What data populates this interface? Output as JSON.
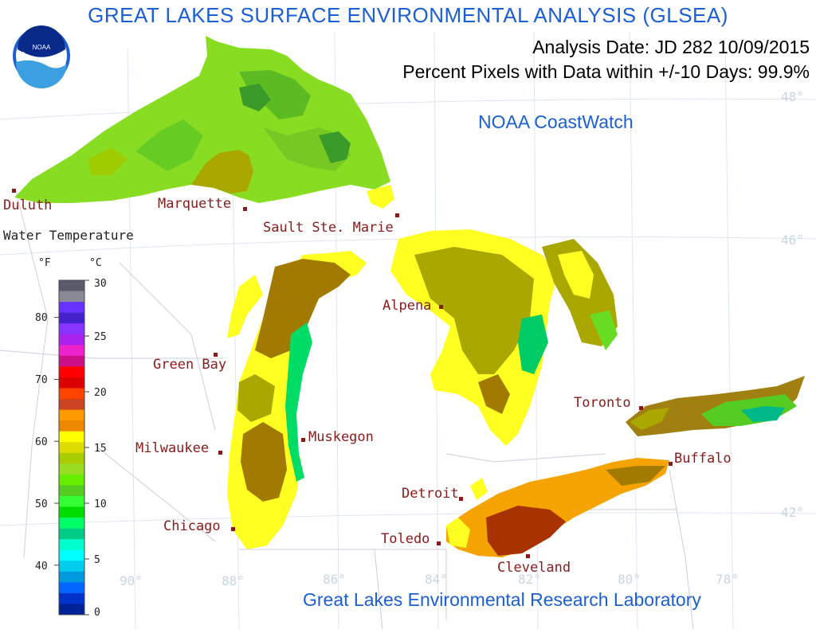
{
  "title": "GREAT LAKES SURFACE ENVIRONMENTAL ANALYSIS (GLSEA)",
  "analysis_date": "Analysis Date:  JD 282 10/09/2015",
  "coverage": "Percent Pixels with Data within +/-10 Days:  99.9%",
  "coastwatch": "NOAA CoastWatch",
  "lab": "Great Lakes Environmental Research Laboratory",
  "logo_text": "NOAA",
  "legend": {
    "title": "Water Temperature",
    "unit_f": "°F",
    "unit_c": "°C",
    "f_ticks": [
      "80",
      "70",
      "60",
      "50",
      "40"
    ],
    "c_ticks": [
      "30",
      "25",
      "20",
      "15",
      "10",
      "5",
      "0"
    ],
    "colors": [
      "#5a5a6a",
      "#8a8a96",
      "#6633ff",
      "#4422cc",
      "#8833ff",
      "#aa22ee",
      "#ee22cc",
      "#cc1188",
      "#ff0000",
      "#dd0000",
      "#ff4400",
      "#cc4422",
      "#ff9900",
      "#ee8800",
      "#ffff00",
      "#dddd00",
      "#aacc00",
      "#99dd22",
      "#66ee00",
      "#55cc22",
      "#33ff33",
      "#00dd00",
      "#00ff66",
      "#00cc88",
      "#00ffcc",
      "#00ffff",
      "#00ccee",
      "#0099dd",
      "#0066ff",
      "#0033cc",
      "#002299"
    ]
  },
  "cities": [
    {
      "name": "Duluth"
    },
    {
      "name": "Marquette"
    },
    {
      "name": "Sault Ste. Marie"
    },
    {
      "name": "Green Bay"
    },
    {
      "name": "Alpena"
    },
    {
      "name": "Milwaukee"
    },
    {
      "name": "Muskegon"
    },
    {
      "name": "Toronto"
    },
    {
      "name": "Buffalo"
    },
    {
      "name": "Detroit"
    },
    {
      "name": "Chicago"
    },
    {
      "name": "Toledo"
    },
    {
      "name": "Cleveland"
    }
  ],
  "graticule": {
    "lat": [
      "48°",
      "46°",
      "42°"
    ],
    "lon": [
      "90°",
      "88°",
      "86°",
      "84°",
      "82°",
      "80°",
      "78°"
    ]
  },
  "colors": {
    "title_blue": "#1a5fd6",
    "city_red": "#8b1a1a",
    "lake_superior": "#88dd22",
    "lake_michigan": "#ffff22",
    "lake_huron": "#aaa700",
    "lake_erie": "#f5a300",
    "lake_ontario": "#a08010"
  }
}
